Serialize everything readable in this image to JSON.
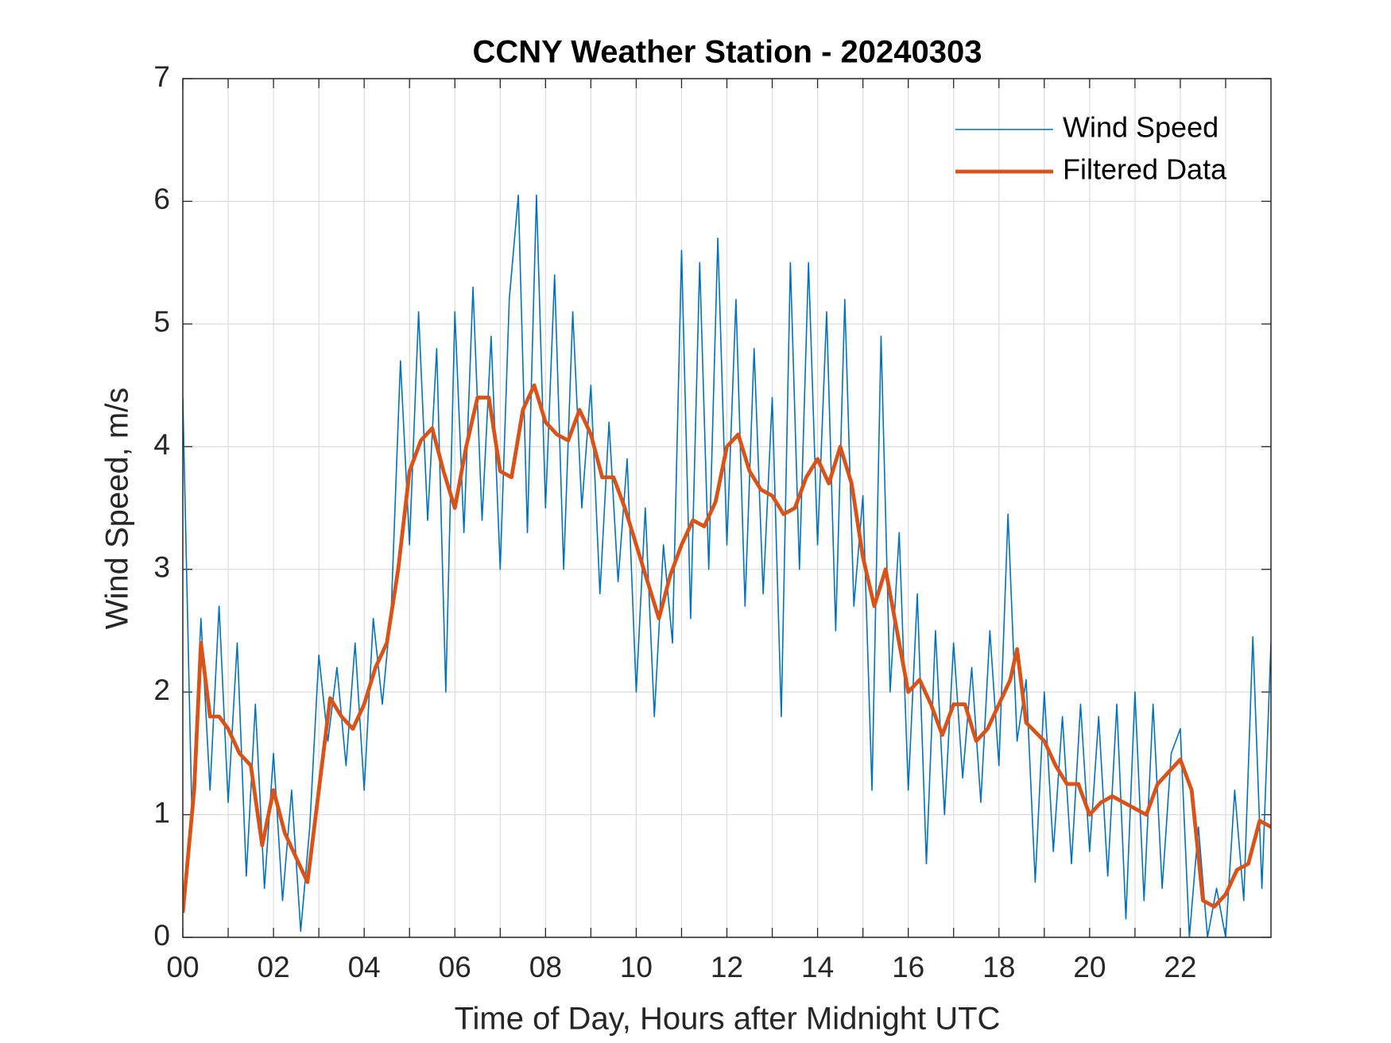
{
  "chart_data": {
    "type": "line",
    "title": "CCNY Weather Station - 20240303",
    "x_label": "Time of Day, Hours after Midnight UTC",
    "y_label": "Wind Speed, m/s",
    "xlim": [
      0,
      24
    ],
    "ylim": [
      0,
      7
    ],
    "xticks": [
      {
        "value": 0,
        "label": "00"
      },
      {
        "value": 2,
        "label": "02"
      },
      {
        "value": 4,
        "label": "04"
      },
      {
        "value": 6,
        "label": "06"
      },
      {
        "value": 8,
        "label": "08"
      },
      {
        "value": 10,
        "label": "10"
      },
      {
        "value": 12,
        "label": "12"
      },
      {
        "value": 14,
        "label": "14"
      },
      {
        "value": 16,
        "label": "16"
      },
      {
        "value": 18,
        "label": "18"
      },
      {
        "value": 20,
        "label": "20"
      },
      {
        "value": 22,
        "label": "22"
      }
    ],
    "xminorticks": [
      1,
      3,
      5,
      7,
      9,
      11,
      13,
      15,
      17,
      19,
      21,
      23
    ],
    "yticks": [
      0,
      1,
      2,
      3,
      4,
      5,
      6,
      7
    ],
    "grid": true,
    "legend": "upper right",
    "series": [
      {
        "name": "Wind Speed",
        "color": "#0072bd",
        "x": [
          0,
          0.2,
          0.4,
          0.6,
          0.8,
          1,
          1.2,
          1.4,
          1.6,
          1.8,
          2,
          2.2,
          2.4,
          2.6,
          2.8,
          3,
          3.2,
          3.4,
          3.6,
          3.8,
          4,
          4.2,
          4.4,
          4.6,
          4.8,
          5,
          5.2,
          5.4,
          5.6,
          5.8,
          6,
          6.2,
          6.4,
          6.6,
          6.8,
          7,
          7.2,
          7.4,
          7.6,
          7.8,
          8,
          8.2,
          8.4,
          8.6,
          8.8,
          9,
          9.2,
          9.4,
          9.6,
          9.8,
          10,
          10.2,
          10.4,
          10.6,
          10.8,
          11,
          11.2,
          11.4,
          11.6,
          11.8,
          12,
          12.2,
          12.4,
          12.6,
          12.8,
          13,
          13.2,
          13.4,
          13.6,
          13.8,
          14,
          14.2,
          14.4,
          14.6,
          14.8,
          15,
          15.2,
          15.4,
          15.6,
          15.8,
          16,
          16.2,
          16.4,
          16.6,
          16.8,
          17,
          17.2,
          17.4,
          17.6,
          17.8,
          18,
          18.2,
          18.4,
          18.6,
          18.8,
          19,
          19.2,
          19.4,
          19.6,
          19.8,
          20,
          20.2,
          20.4,
          20.6,
          20.8,
          21,
          21.2,
          21.4,
          21.6,
          21.8,
          22,
          22.2,
          22.4,
          22.6,
          22.8,
          23,
          23.2,
          23.4,
          23.6,
          23.8,
          24
        ],
        "values": [
          4.4,
          1,
          2.6,
          1.2,
          2.7,
          1.1,
          2.4,
          0.5,
          1.9,
          0.4,
          1.5,
          0.3,
          1.2,
          0.05,
          0.9,
          2.3,
          1.6,
          2.2,
          1.4,
          2.4,
          1.2,
          2.6,
          1.9,
          2.7,
          4.7,
          3.2,
          5.1,
          3.4,
          4.8,
          2,
          5.1,
          3.3,
          5.3,
          3.4,
          4.9,
          3,
          5.2,
          6.05,
          3.3,
          6.05,
          3.5,
          5.4,
          3,
          5.1,
          3.5,
          4.5,
          2.8,
          4.2,
          2.9,
          3.9,
          2,
          3.5,
          1.8,
          3.2,
          2.4,
          5.6,
          2.6,
          5.5,
          3,
          5.7,
          3.2,
          5.2,
          2.7,
          4.8,
          2.8,
          4.4,
          1.8,
          5.5,
          3,
          5.5,
          3.2,
          5.1,
          2.5,
          5.2,
          2.7,
          3.6,
          1.2,
          4.9,
          2,
          3.3,
          1.2,
          2.8,
          0.6,
          2.5,
          1,
          2.4,
          1.3,
          2.2,
          1.1,
          2.5,
          1.4,
          3.45,
          1.6,
          2.1,
          0.45,
          2,
          0.7,
          1.8,
          0.6,
          1.9,
          0.7,
          1.8,
          0.5,
          1.9,
          0.15,
          2,
          0.3,
          1.9,
          0.4,
          1.5,
          1.7,
          0,
          0.9,
          0,
          0.4,
          0,
          1.2,
          0.3,
          2.45,
          0.4,
          2.4
        ]
      },
      {
        "name": "Filtered Data",
        "color": "#d95319",
        "x": [
          0,
          0.25,
          0.4,
          0.6,
          0.8,
          1,
          1.25,
          1.5,
          1.75,
          2,
          2.25,
          2.5,
          2.75,
          3,
          3.25,
          3.5,
          3.75,
          4,
          4.25,
          4.5,
          4.75,
          5,
          5.25,
          5.5,
          5.75,
          6,
          6.25,
          6.5,
          6.75,
          7,
          7.25,
          7.5,
          7.75,
          8,
          8.25,
          8.5,
          8.75,
          9,
          9.25,
          9.5,
          9.75,
          10,
          10.25,
          10.5,
          10.75,
          11,
          11.25,
          11.5,
          11.75,
          12,
          12.25,
          12.5,
          12.75,
          13,
          13.25,
          13.5,
          13.75,
          14,
          14.25,
          14.5,
          14.75,
          15,
          15.25,
          15.5,
          15.75,
          16,
          16.25,
          16.5,
          16.75,
          17,
          17.25,
          17.5,
          17.75,
          18,
          18.25,
          18.4,
          18.6,
          19,
          19.25,
          19.5,
          19.75,
          20,
          20.25,
          20.5,
          20.75,
          21,
          21.25,
          21.5,
          21.75,
          22,
          22.25,
          22.5,
          22.75,
          23,
          23.25,
          23.5,
          23.75,
          24
        ],
        "values": [
          0.2,
          1.2,
          2.4,
          1.8,
          1.8,
          1.7,
          1.5,
          1.4,
          0.75,
          1.2,
          0.85,
          0.65,
          0.45,
          1.2,
          1.95,
          1.8,
          1.7,
          1.9,
          2.2,
          2.4,
          3,
          3.8,
          4.05,
          4.15,
          3.8,
          3.5,
          4,
          4.4,
          4.4,
          3.8,
          3.75,
          4.3,
          4.5,
          4.2,
          4.1,
          4.05,
          4.3,
          4.1,
          3.75,
          3.75,
          3.5,
          3.2,
          2.9,
          2.6,
          2.95,
          3.2,
          3.4,
          3.35,
          3.55,
          4,
          4.1,
          3.8,
          3.65,
          3.6,
          3.45,
          3.5,
          3.75,
          3.9,
          3.7,
          4,
          3.7,
          3.1,
          2.7,
          3,
          2.5,
          2,
          2.1,
          1.9,
          1.65,
          1.9,
          1.9,
          1.6,
          1.7,
          1.9,
          2.1,
          2.35,
          1.75,
          1.6,
          1.4,
          1.25,
          1.25,
          1,
          1.1,
          1.15,
          1.1,
          1.05,
          1,
          1.25,
          1.35,
          1.45,
          1.2,
          0.3,
          0.25,
          0.35,
          0.55,
          0.6,
          0.95,
          0.9
        ]
      }
    ]
  }
}
